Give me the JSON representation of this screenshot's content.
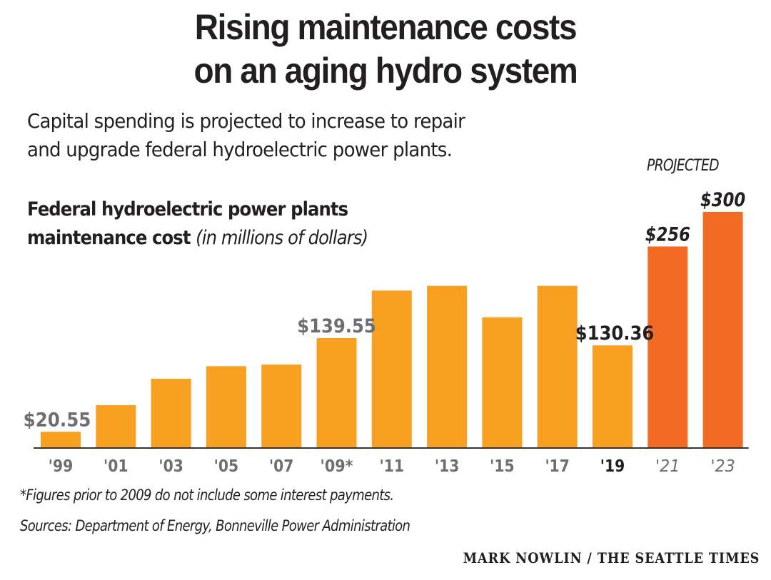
{
  "header": {
    "title_line1": "Rising maintenance costs",
    "title_line2": "on an aging hydro system",
    "subtitle_line1": "Capital spending is projected to increase to repair",
    "subtitle_line2": "and upgrade federal hydroelectric power plants."
  },
  "chart_head": {
    "line1": "Federal hydroelectric power plants",
    "line2_bold": "maintenance cost",
    "line2_unit": "(in millions of dollars)"
  },
  "projected_label": "PROJECTED",
  "colors": {
    "actual": "#f7a021",
    "projected": "#f26b24",
    "text_dark": "#231f20",
    "text_gray": "#6d6e71",
    "baseline": "#333333"
  },
  "chart_data": {
    "type": "bar",
    "title": "Federal hydroelectric power plants maintenance cost",
    "ylabel": "in millions of dollars",
    "xlabel": "",
    "ylim": [
      0,
      300
    ],
    "grid": false,
    "categories": [
      "'99",
      "'01",
      "'03",
      "'05",
      "'07",
      "'09*",
      "'11",
      "'13",
      "'15",
      "'17",
      "'19",
      "'21",
      "'23"
    ],
    "values": [
      20.55,
      54.5,
      88,
      104,
      106,
      139.55,
      200,
      206,
      166,
      206,
      130.36,
      256,
      300
    ],
    "projected": [
      false,
      false,
      false,
      false,
      false,
      false,
      false,
      false,
      false,
      false,
      false,
      true,
      true
    ],
    "data_labels": [
      {
        "index": 0,
        "text": "$20.55",
        "style": "gray"
      },
      {
        "index": 5,
        "text": "$139.55",
        "style": "gray"
      },
      {
        "index": 10,
        "text": "$130.36",
        "style": "bold-dark"
      },
      {
        "index": 11,
        "text": "$256",
        "style": "bold-italic-dark"
      },
      {
        "index": 12,
        "text": "$300",
        "style": "bold-italic-dark"
      }
    ],
    "tick_styles": [
      "gray",
      "gray",
      "gray",
      "gray",
      "gray",
      "gray",
      "gray",
      "gray",
      "gray",
      "gray",
      "dark",
      "italic-gray",
      "italic-gray"
    ],
    "annotation": "PROJECTED"
  },
  "footer": {
    "footnote": "*Figures prior to 2009 do not include some interest payments.",
    "sources": "Sources: Department of Energy, Bonneville Power Administration",
    "credit": "MARK NOWLIN / THE SEATTLE TIMES"
  }
}
